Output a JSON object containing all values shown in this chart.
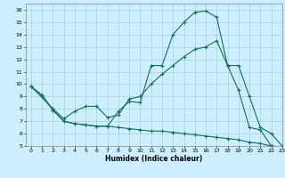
{
  "xlabel": "Humidex (Indice chaleur)",
  "bg_color": "#cceeff",
  "grid_color": "#99cccc",
  "line_color": "#1a6b5a",
  "xlim": [
    -0.5,
    23
  ],
  "ylim": [
    5,
    16.5
  ],
  "xticks": [
    0,
    1,
    2,
    3,
    4,
    5,
    6,
    7,
    8,
    9,
    10,
    11,
    12,
    13,
    14,
    15,
    16,
    17,
    18,
    19,
    20,
    21,
    22,
    23
  ],
  "yticks": [
    5,
    6,
    7,
    8,
    9,
    10,
    11,
    12,
    13,
    14,
    15,
    16
  ],
  "line1_x": [
    0,
    1,
    2,
    3,
    4,
    5,
    6,
    7,
    8,
    9,
    10,
    11,
    12,
    13,
    14,
    15,
    16,
    17,
    18,
    19,
    20,
    21,
    22,
    23
  ],
  "line1_y": [
    9.8,
    9.1,
    7.9,
    7.0,
    6.8,
    6.7,
    6.6,
    6.6,
    7.8,
    8.6,
    8.5,
    11.5,
    11.5,
    14.0,
    15.0,
    15.8,
    15.9,
    15.4,
    11.5,
    9.5,
    6.5,
    6.3,
    5.0,
    4.9
  ],
  "line2_x": [
    0,
    2,
    3,
    4,
    5,
    6,
    7,
    8,
    9,
    10,
    11,
    12,
    13,
    14,
    15,
    16,
    17,
    18,
    19,
    20,
    21,
    22,
    23
  ],
  "line2_y": [
    9.8,
    8.0,
    7.2,
    7.8,
    8.2,
    8.2,
    7.3,
    7.5,
    8.8,
    9.0,
    10.0,
    10.8,
    11.5,
    12.2,
    12.8,
    13.0,
    13.5,
    11.5,
    11.5,
    9.0,
    6.5,
    6.0,
    5.0
  ],
  "line3_x": [
    0,
    1,
    2,
    3,
    4,
    5,
    6,
    7,
    8,
    9,
    10,
    11,
    12,
    13,
    14,
    15,
    16,
    17,
    18,
    19,
    20,
    21,
    22,
    23
  ],
  "line3_y": [
    9.8,
    9.1,
    7.9,
    7.0,
    6.8,
    6.7,
    6.6,
    6.6,
    6.5,
    6.4,
    6.3,
    6.2,
    6.2,
    6.1,
    6.0,
    5.9,
    5.8,
    5.7,
    5.6,
    5.5,
    5.3,
    5.2,
    5.0,
    4.9
  ]
}
